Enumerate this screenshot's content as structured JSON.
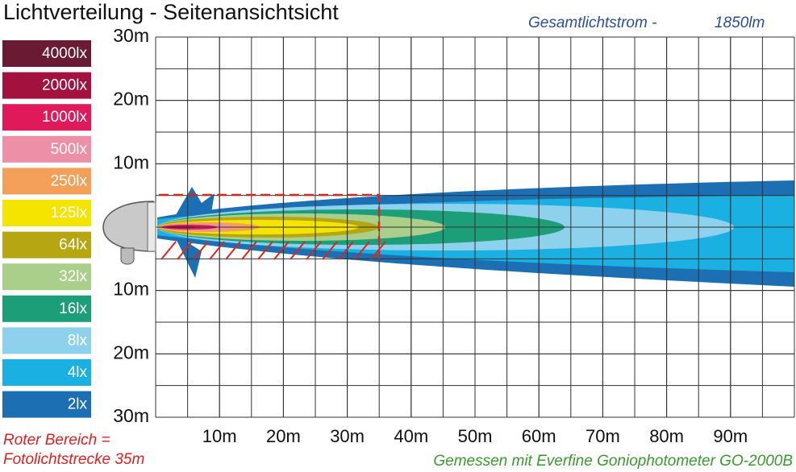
{
  "chart_data": {
    "type": "isolux",
    "title": "Lichtverteilung - Seitenansichtsicht",
    "total_flux_label": "Gesamtlichtstrom -",
    "total_flux": "1850lm",
    "legend": [
      {
        "label": "4000lx",
        "color": "#6b1a33"
      },
      {
        "label": "2000lx",
        "color": "#a3123e"
      },
      {
        "label": "1000lx",
        "color": "#e0195a"
      },
      {
        "label": "500lx",
        "color": "#ee8fa8"
      },
      {
        "label": "250lx",
        "color": "#f4a05a"
      },
      {
        "label": "125lx",
        "color": "#f5e400"
      },
      {
        "label": "64lx",
        "color": "#b6a712"
      },
      {
        "label": "32lx",
        "color": "#a9cf8a"
      },
      {
        "label": "16lx",
        "color": "#1c9e79"
      },
      {
        "label": "8lx",
        "color": "#8ed1ec"
      },
      {
        "label": "4lx",
        "color": "#1ab0e2"
      },
      {
        "label": "2lx",
        "color": "#1c6fb2"
      }
    ],
    "xlim": [
      0,
      100
    ],
    "ylim": [
      -30,
      30
    ],
    "xticks": [
      {
        "value": 10,
        "label": "10m"
      },
      {
        "value": 20,
        "label": "20m"
      },
      {
        "value": 30,
        "label": "30m"
      },
      {
        "value": 40,
        "label": "40m"
      },
      {
        "value": 50,
        "label": "50m"
      },
      {
        "value": 60,
        "label": "60m"
      },
      {
        "value": 70,
        "label": "70m"
      },
      {
        "value": 80,
        "label": "80m"
      },
      {
        "value": 90,
        "label": "90m"
      }
    ],
    "yticks": [
      {
        "value": 30,
        "label": "30m"
      },
      {
        "value": 20,
        "label": "20m"
      },
      {
        "value": 10,
        "label": "10m"
      },
      {
        "value": -10,
        "label": "10m"
      },
      {
        "value": -20,
        "label": "20m"
      },
      {
        "value": -30,
        "label": "30m"
      }
    ],
    "red_zone_note": [
      "Roter Bereich =",
      "Fotolichtstrecke 35m"
    ],
    "measurement_note": "Gemessen mit Everfine Goniophotometer GO-2000B"
  }
}
